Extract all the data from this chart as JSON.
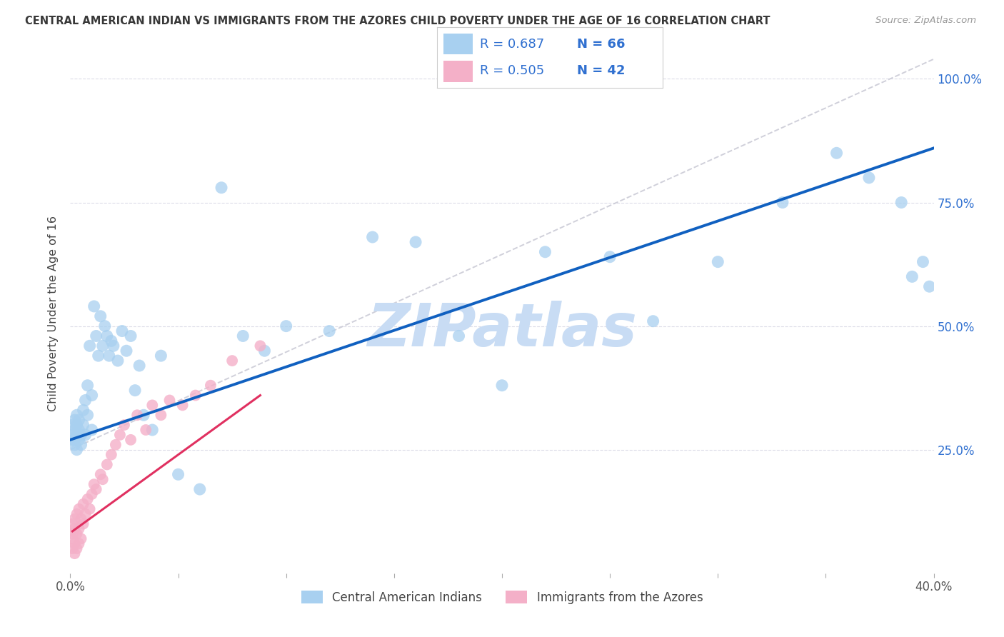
{
  "title": "CENTRAL AMERICAN INDIAN VS IMMIGRANTS FROM THE AZORES CHILD POVERTY UNDER THE AGE OF 16 CORRELATION CHART",
  "source": "Source: ZipAtlas.com",
  "ylabel": "Child Poverty Under the Age of 16",
  "xlim": [
    0.0,
    0.4
  ],
  "ylim": [
    0.0,
    1.05
  ],
  "blue_color": "#a8d0f0",
  "pink_color": "#f4b0c8",
  "blue_line_color": "#1060c0",
  "pink_line_color": "#e03060",
  "ref_line_color": "#c8c8d4",
  "grid_color": "#dcdce8",
  "watermark_color": "#c8dcf4",
  "legend_text_color": "#3070d0",
  "title_color": "#383838",
  "source_color": "#999999",
  "legend_label_blue": "Central American Indians",
  "legend_label_pink": "Immigrants from the Azores",
  "blue_R": 0.687,
  "blue_N": 66,
  "pink_R": 0.505,
  "pink_N": 42,
  "blue_x": [
    0.001,
    0.001,
    0.001,
    0.002,
    0.002,
    0.002,
    0.002,
    0.003,
    0.003,
    0.003,
    0.003,
    0.004,
    0.004,
    0.004,
    0.005,
    0.005,
    0.006,
    0.006,
    0.007,
    0.007,
    0.008,
    0.008,
    0.009,
    0.01,
    0.01,
    0.011,
    0.012,
    0.013,
    0.014,
    0.015,
    0.016,
    0.017,
    0.018,
    0.019,
    0.02,
    0.022,
    0.024,
    0.026,
    0.028,
    0.03,
    0.032,
    0.034,
    0.038,
    0.042,
    0.05,
    0.06,
    0.07,
    0.08,
    0.09,
    0.1,
    0.12,
    0.14,
    0.16,
    0.18,
    0.2,
    0.22,
    0.25,
    0.27,
    0.3,
    0.33,
    0.355,
    0.37,
    0.385,
    0.39,
    0.395,
    0.398
  ],
  "blue_y": [
    0.27,
    0.28,
    0.3,
    0.26,
    0.27,
    0.29,
    0.31,
    0.25,
    0.28,
    0.3,
    0.32,
    0.27,
    0.29,
    0.31,
    0.28,
    0.26,
    0.3,
    0.33,
    0.35,
    0.28,
    0.38,
    0.32,
    0.46,
    0.36,
    0.29,
    0.54,
    0.48,
    0.44,
    0.52,
    0.46,
    0.5,
    0.48,
    0.44,
    0.47,
    0.46,
    0.43,
    0.49,
    0.45,
    0.48,
    0.37,
    0.42,
    0.32,
    0.29,
    0.44,
    0.2,
    0.17,
    0.78,
    0.48,
    0.45,
    0.5,
    0.49,
    0.68,
    0.67,
    0.48,
    0.38,
    0.65,
    0.64,
    0.51,
    0.63,
    0.75,
    0.85,
    0.8,
    0.75,
    0.6,
    0.63,
    0.58
  ],
  "pink_x": [
    0.001,
    0.001,
    0.001,
    0.001,
    0.002,
    0.002,
    0.002,
    0.002,
    0.003,
    0.003,
    0.003,
    0.004,
    0.004,
    0.004,
    0.005,
    0.005,
    0.006,
    0.006,
    0.007,
    0.008,
    0.009,
    0.01,
    0.011,
    0.012,
    0.014,
    0.015,
    0.017,
    0.019,
    0.021,
    0.023,
    0.025,
    0.028,
    0.031,
    0.035,
    0.038,
    0.042,
    0.046,
    0.052,
    0.058,
    0.065,
    0.075,
    0.088
  ],
  "pink_y": [
    0.05,
    0.07,
    0.08,
    0.1,
    0.04,
    0.06,
    0.09,
    0.11,
    0.05,
    0.08,
    0.12,
    0.06,
    0.09,
    0.13,
    0.07,
    0.11,
    0.1,
    0.14,
    0.12,
    0.15,
    0.13,
    0.16,
    0.18,
    0.17,
    0.2,
    0.19,
    0.22,
    0.24,
    0.26,
    0.28,
    0.3,
    0.27,
    0.32,
    0.29,
    0.34,
    0.32,
    0.35,
    0.34,
    0.36,
    0.38,
    0.43,
    0.46
  ],
  "blue_line_x0": 0.0,
  "blue_line_y0": 0.27,
  "blue_line_x1": 0.4,
  "blue_line_y1": 0.86,
  "pink_line_x0": 0.001,
  "pink_line_y0": 0.085,
  "pink_line_x1": 0.088,
  "pink_line_y1": 0.36,
  "ref_line_x0": 0.0,
  "ref_line_y0": 0.25,
  "ref_line_x1": 0.4,
  "ref_line_y1": 1.04
}
